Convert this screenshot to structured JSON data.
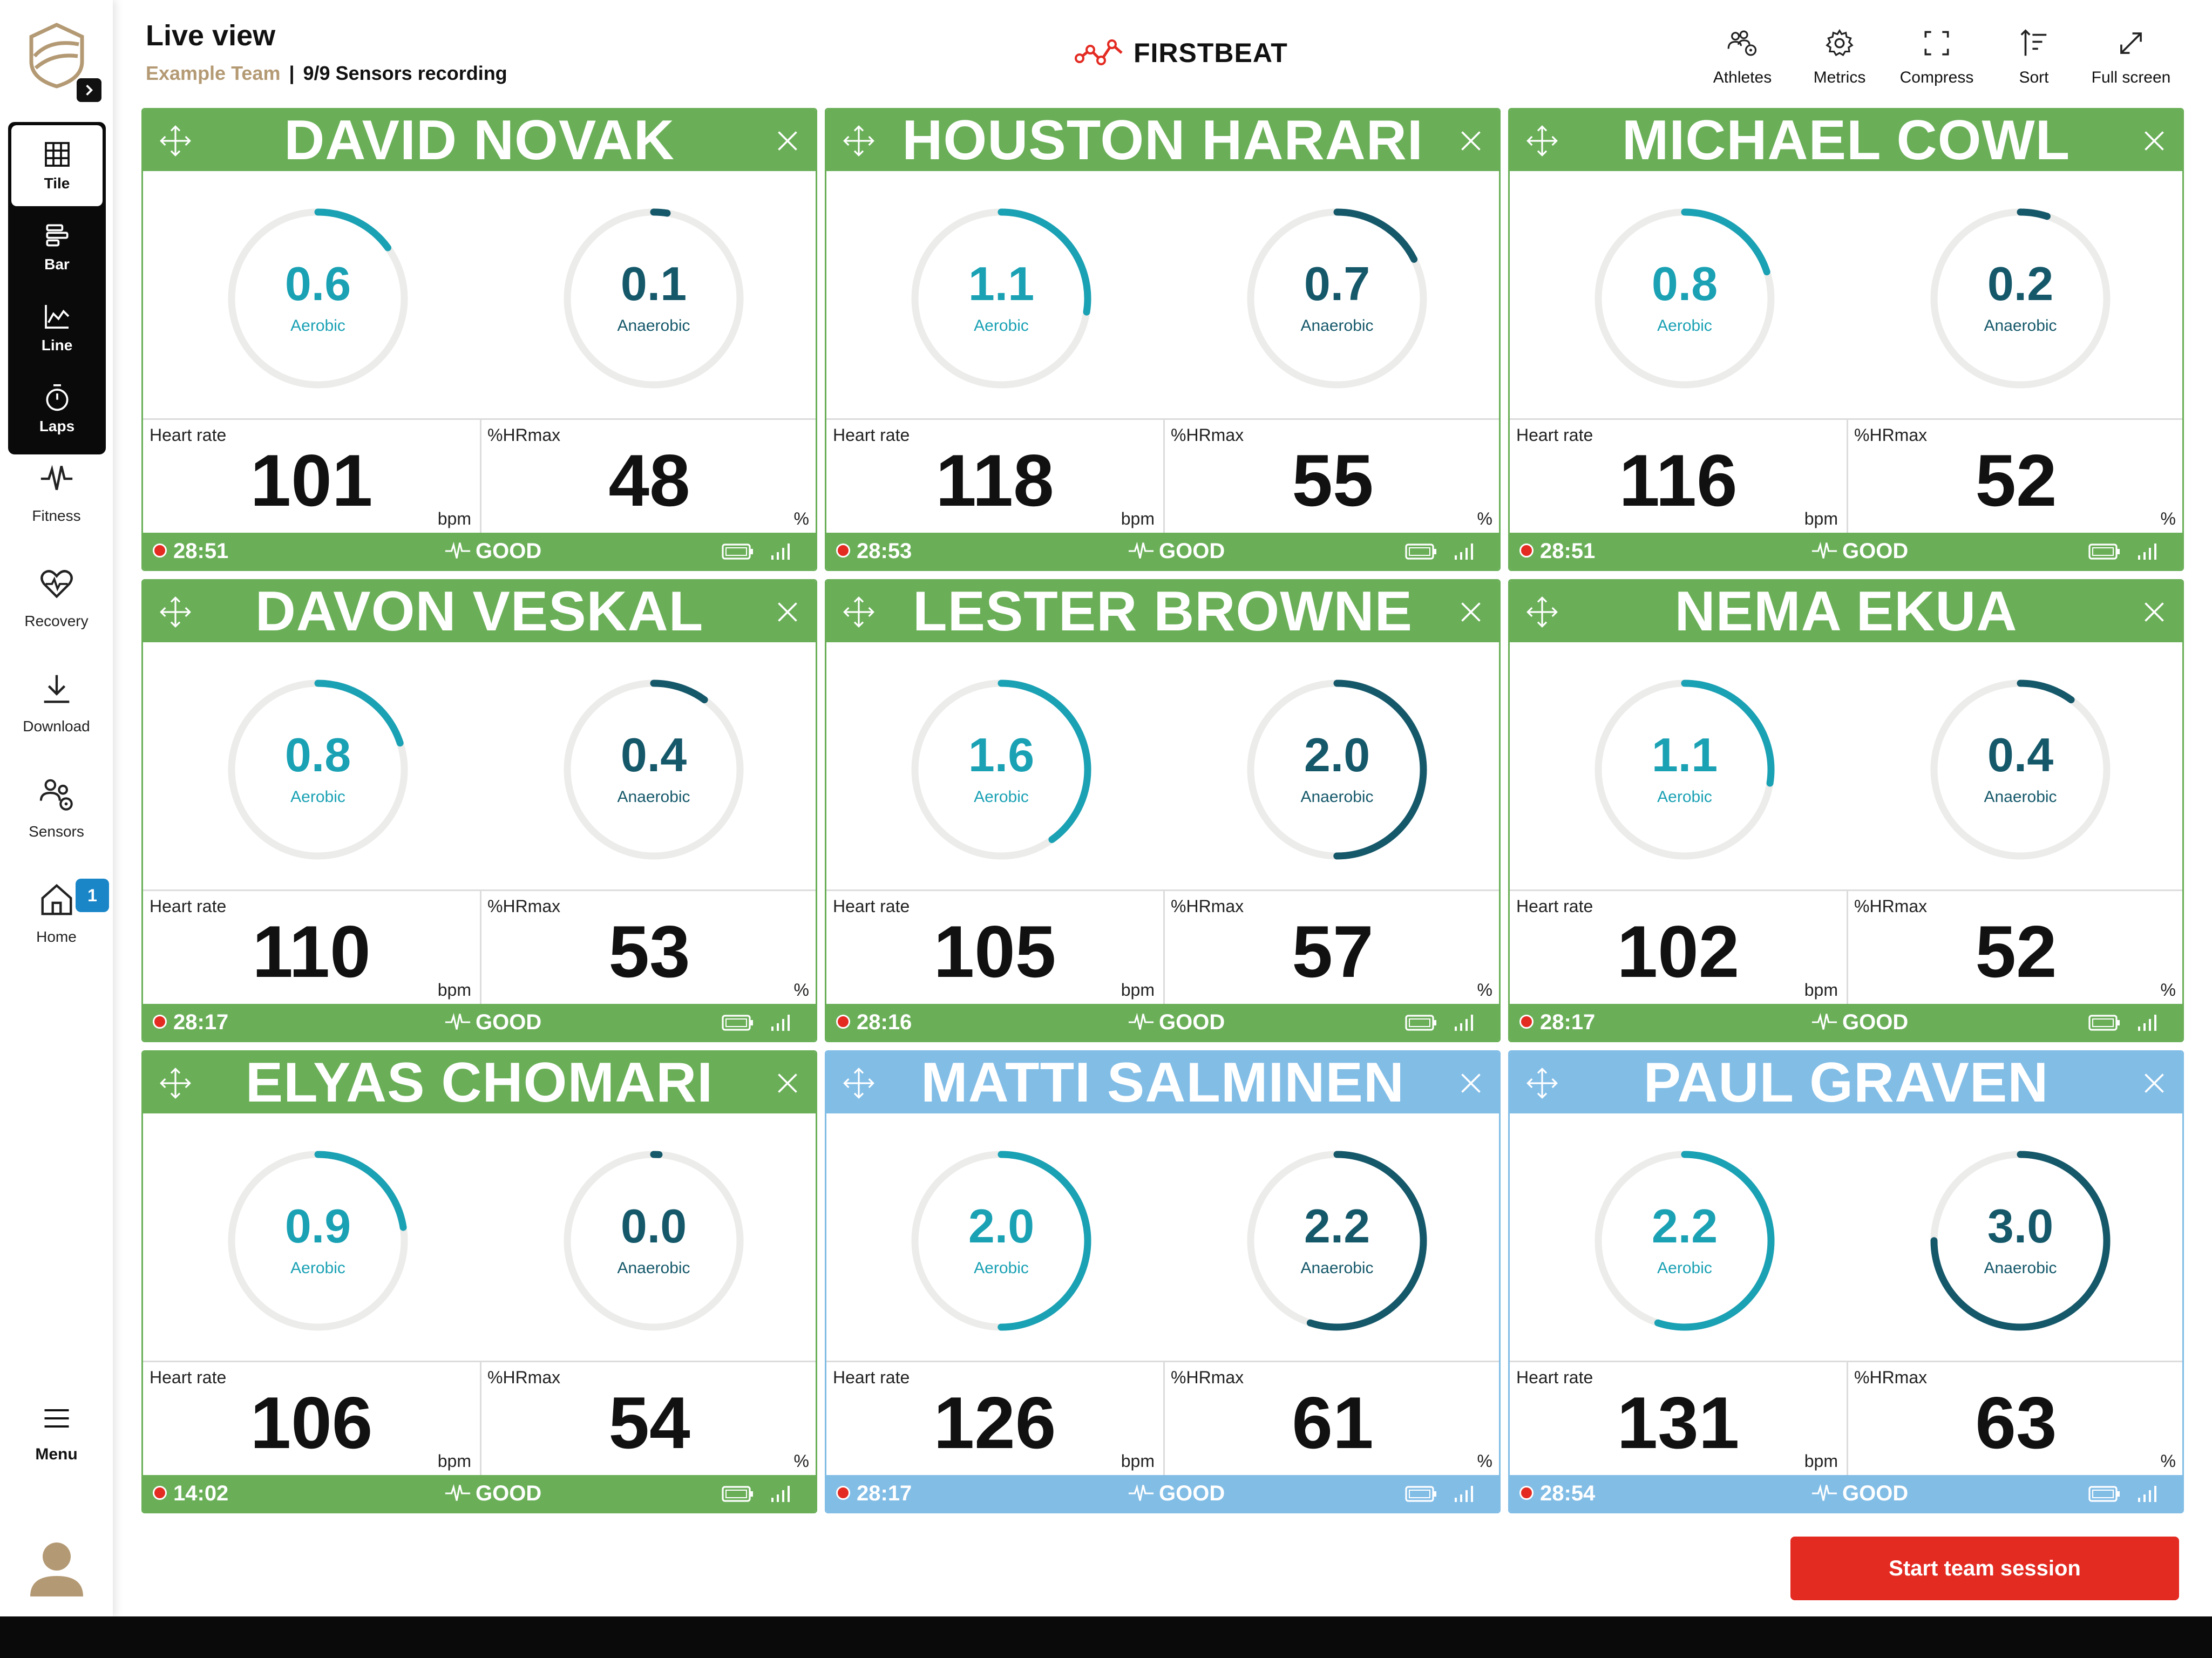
{
  "header": {
    "title": "Live view",
    "team": "Example Team",
    "separator": "|",
    "sensors_status": "9/9 Sensors recording",
    "brand": "FIRSTBEAT"
  },
  "toolbar": [
    {
      "label": "Athletes",
      "icon": "athletes-icon"
    },
    {
      "label": "Metrics",
      "icon": "gear-icon"
    },
    {
      "label": "Compress",
      "icon": "compress-icon"
    },
    {
      "label": "Sort",
      "icon": "sort-icon"
    },
    {
      "label": "Full screen",
      "icon": "fullscreen-icon"
    }
  ],
  "sidebar": {
    "views": [
      {
        "label": "Tile",
        "icon": "tile-icon",
        "active": true
      },
      {
        "label": "Bar",
        "icon": "bar-icon",
        "active": false
      },
      {
        "label": "Line",
        "icon": "line-chart-icon",
        "active": false
      },
      {
        "label": "Laps",
        "icon": "stopwatch-icon",
        "active": false
      }
    ],
    "items": [
      {
        "label": "Fitness",
        "icon": "pulse-icon"
      },
      {
        "label": "Recovery",
        "icon": "heart-icon"
      },
      {
        "label": "Download",
        "icon": "download-icon"
      },
      {
        "label": "Sensors",
        "icon": "sensors-icon"
      },
      {
        "label": "Home",
        "icon": "home-icon",
        "badge": "1"
      }
    ],
    "menu_label": "Menu"
  },
  "labels": {
    "aerobic": "Aerobic",
    "anaerobic": "Anaerobic",
    "heart_rate": "Heart rate",
    "hrmax": "%HRmax",
    "bpm": "bpm",
    "percent": "%"
  },
  "gauge_max": 4.0,
  "colors": {
    "green": "#6aaf58",
    "blue": "#82bde6",
    "aerobic": "#1aa1b4",
    "anaerobic": "#15586a",
    "track": "#ececea",
    "record": "#e32b22",
    "start_button": "#e32b22"
  },
  "athletes": [
    {
      "name": "DAVID NOVAK",
      "aerobic": "0.6",
      "anaerobic": "0.1",
      "heart_rate": "101",
      "hrmax": "48",
      "time": "28:51",
      "status": "GOOD",
      "theme": "green"
    },
    {
      "name": "HOUSTON HARARI",
      "aerobic": "1.1",
      "anaerobic": "0.7",
      "heart_rate": "118",
      "hrmax": "55",
      "time": "28:53",
      "status": "GOOD",
      "theme": "green"
    },
    {
      "name": "MICHAEL COWL",
      "aerobic": "0.8",
      "anaerobic": "0.2",
      "heart_rate": "116",
      "hrmax": "52",
      "time": "28:51",
      "status": "GOOD",
      "theme": "green"
    },
    {
      "name": "DAVON VESKAL",
      "aerobic": "0.8",
      "anaerobic": "0.4",
      "heart_rate": "110",
      "hrmax": "53",
      "time": "28:17",
      "status": "GOOD",
      "theme": "green"
    },
    {
      "name": "LESTER BROWNE",
      "aerobic": "1.6",
      "anaerobic": "2.0",
      "heart_rate": "105",
      "hrmax": "57",
      "time": "28:16",
      "status": "GOOD",
      "theme": "green"
    },
    {
      "name": "NEMA EKUA",
      "aerobic": "1.1",
      "anaerobic": "0.4",
      "heart_rate": "102",
      "hrmax": "52",
      "time": "28:17",
      "status": "GOOD",
      "theme": "green"
    },
    {
      "name": "ELYAS CHOMARI",
      "aerobic": "0.9",
      "anaerobic": "0.0",
      "heart_rate": "106",
      "hrmax": "54",
      "time": "14:02",
      "status": "GOOD",
      "theme": "green"
    },
    {
      "name": "MATTI SALMINEN",
      "aerobic": "2.0",
      "anaerobic": "2.2",
      "heart_rate": "126",
      "hrmax": "61",
      "time": "28:17",
      "status": "GOOD",
      "theme": "blue"
    },
    {
      "name": "PAUL GRAVEN",
      "aerobic": "2.2",
      "anaerobic": "3.0",
      "heart_rate": "131",
      "hrmax": "63",
      "time": "28:54",
      "status": "GOOD",
      "theme": "blue"
    }
  ],
  "actions": {
    "start_session": "Start team session"
  }
}
